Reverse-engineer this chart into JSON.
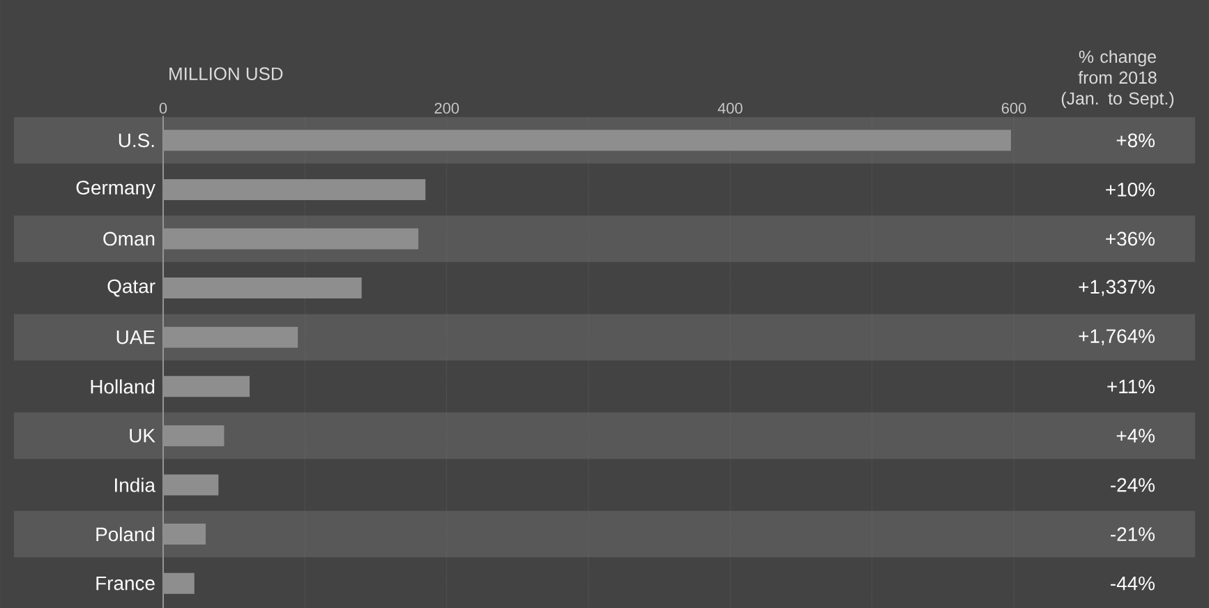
{
  "chart_data": {
    "type": "bar",
    "orientation": "horizontal",
    "xlabel": "MILLION USD",
    "categories": [
      "U.S.",
      "Germany",
      "Oman",
      "Qatar",
      "UAE",
      "Holland",
      "UK",
      "India",
      "Poland",
      "France"
    ],
    "values": [
      598,
      185,
      180,
      140,
      95,
      61,
      43,
      39,
      30,
      22
    ],
    "color": "#8e8e8e",
    "xlim": [
      0,
      600
    ],
    "xticks": [
      0,
      {
        "value": 100,
        "label": null
      },
      200,
      {
        "value": 300,
        "label": null
      },
      400,
      {
        "value": 500,
        "label": null
      },
      600
    ],
    "grid": "x",
    "annotations": [
      "% change from 2018 (Jan. to Sept.)",
      "+8%",
      "+10%",
      "+36%",
      "+1,337%",
      "+1,764%",
      "+11%",
      "+4%",
      "-24%",
      "-21%",
      "-44%"
    ]
  }
}
